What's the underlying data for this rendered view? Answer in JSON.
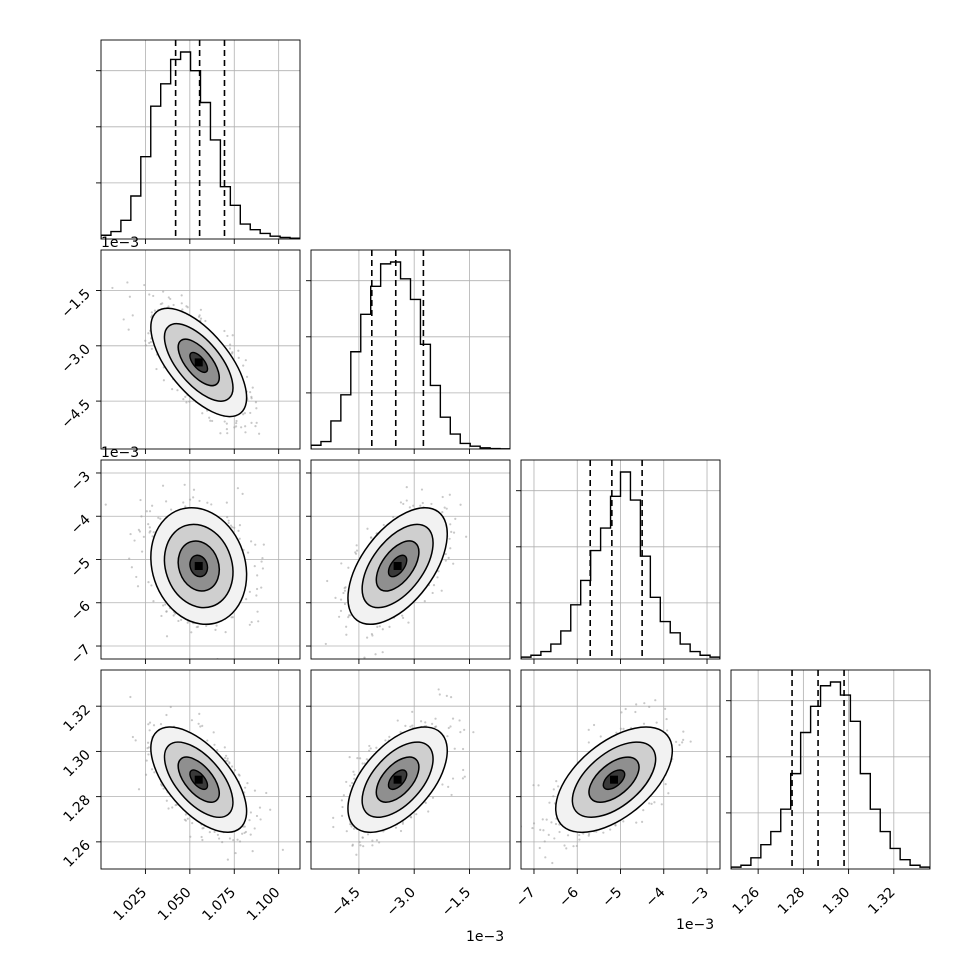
{
  "chart_data": {
    "type": "corner",
    "variables": [
      {
        "ticks": [
          "1.025",
          "1.050",
          "1.075",
          "1.100"
        ],
        "tick_values": [
          1.025,
          1.05,
          1.075,
          1.1
        ],
        "range": [
          1.0,
          1.112
        ],
        "offset": "",
        "quantiles": [
          1.042,
          1.0555,
          1.0695
        ]
      },
      {
        "ticks": [
          "−4.5",
          "−3.0",
          "−1.5"
        ],
        "tick_values": [
          -4.5,
          -3.0,
          -1.5
        ],
        "range": [
          -5.8,
          -0.4
        ],
        "offset": "1e−3",
        "quantiles": [
          -4.15,
          -3.5,
          -2.75
        ]
      },
      {
        "ticks": [
          "−7",
          "−6",
          "−5",
          "−4",
          "−3"
        ],
        "tick_values": [
          -7,
          -6,
          -5,
          -4,
          -3
        ],
        "range": [
          -7.3,
          -2.7
        ],
        "offset": "1e−3",
        "quantiles": [
          -5.7,
          -5.2,
          -4.5
        ]
      },
      {
        "ticks": [
          "1.26",
          "1.28",
          "1.30",
          "1.32"
        ],
        "tick_values": [
          1.26,
          1.28,
          1.3,
          1.32
        ],
        "range": [
          1.248,
          1.336
        ],
        "offset": "",
        "quantiles": [
          1.275,
          1.2865,
          1.298
        ]
      }
    ],
    "hist_data": [
      [
        0.02,
        0.04,
        0.1,
        0.23,
        0.44,
        0.71,
        0.83,
        0.96,
        1.0,
        0.9,
        0.73,
        0.53,
        0.28,
        0.18,
        0.08,
        0.05,
        0.03,
        0.015,
        0.008,
        0.004
      ],
      [
        0.02,
        0.04,
        0.15,
        0.29,
        0.52,
        0.72,
        0.87,
        0.99,
        1.0,
        0.91,
        0.8,
        0.56,
        0.34,
        0.17,
        0.08,
        0.03,
        0.015,
        0.006,
        0.002,
        0.001
      ],
      [
        0.01,
        0.02,
        0.04,
        0.08,
        0.15,
        0.29,
        0.42,
        0.58,
        0.7,
        0.87,
        1.0,
        0.85,
        0.55,
        0.33,
        0.2,
        0.14,
        0.08,
        0.04,
        0.02,
        0.01
      ],
      [
        0.01,
        0.02,
        0.06,
        0.13,
        0.2,
        0.32,
        0.51,
        0.73,
        0.87,
        0.98,
        1.0,
        0.93,
        0.79,
        0.51,
        0.32,
        0.2,
        0.11,
        0.05,
        0.02,
        0.01
      ]
    ],
    "offset_labels": {
      "bottom_col1": "1e−3",
      "bottom_col2": "1e−3"
    },
    "grid": true
  }
}
